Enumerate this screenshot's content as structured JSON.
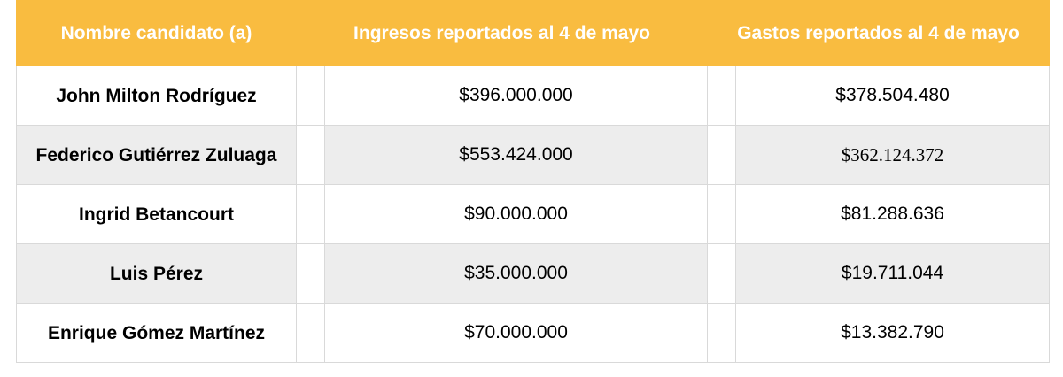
{
  "table": {
    "headers": {
      "name": "Nombre candidato (a)",
      "ingresos": "Ingresos reportados al 4 de mayo",
      "gastos": "Gastos reportados al 4 de mayo"
    },
    "rows": [
      {
        "name": "John Milton Rodríguez",
        "ingresos": "$396.000.000",
        "gastos": "$378.504.480"
      },
      {
        "name": "Federico Gutiérrez Zuluaga",
        "ingresos": "$553.424.000",
        "gastos": "$362.124.372"
      },
      {
        "name": "Ingrid Betancourt",
        "ingresos": "$90.000.000",
        "gastos": "$81.288.636"
      },
      {
        "name": "Luis Pérez",
        "ingresos": "$35.000.000",
        "gastos": "$19.711.044"
      },
      {
        "name": "Enrique Gómez Martínez",
        "ingresos": "$70.000.000",
        "gastos": "$13.382.790"
      }
    ]
  },
  "colors": {
    "header_bg": "#f9bc40",
    "header_text": "#ffffff",
    "alt_row_bg": "#ededed",
    "border": "#d9d9d9"
  }
}
